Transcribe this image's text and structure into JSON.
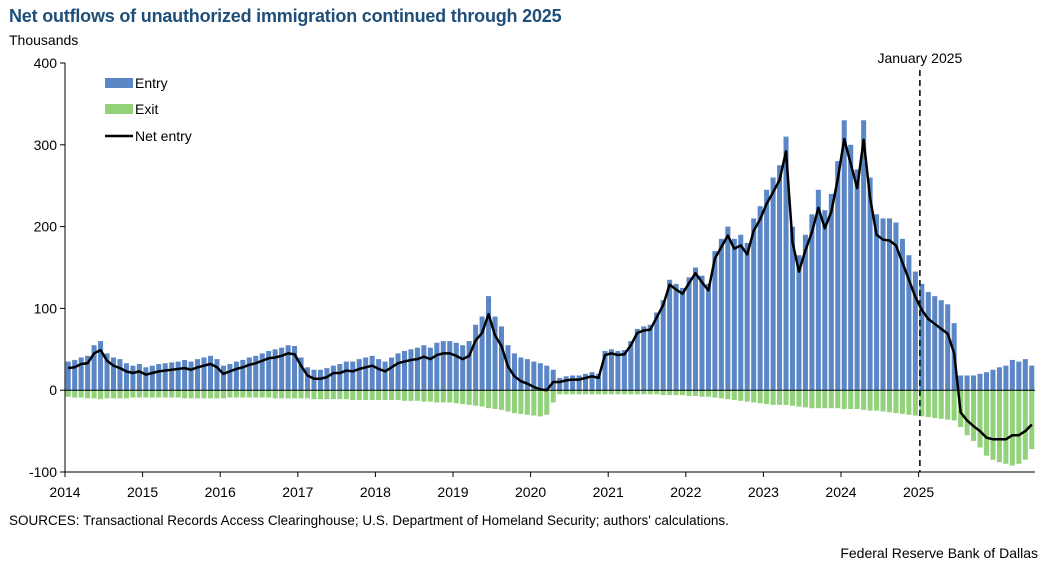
{
  "header": {
    "title": "Net outflows of unauthorized immigration continued through 2025",
    "units": "Thousands"
  },
  "footer": {
    "sources": "SOURCES: Transactional Records Access Clearinghouse; U.S. Department of Homeland Security; authors' calculations.",
    "credit": "Federal Reserve Bank of Dallas"
  },
  "chart_data": {
    "type": "bar",
    "frequency": "monthly",
    "start": "2014-01",
    "end": "2025-12",
    "ylim": [
      -100,
      400
    ],
    "yticks": [
      -100,
      0,
      100,
      200,
      300,
      400
    ],
    "xticks": [
      "2014",
      "2015",
      "2016",
      "2017",
      "2018",
      "2019",
      "2020",
      "2021",
      "2022",
      "2023",
      "2024",
      "2025"
    ],
    "grid": false,
    "legend": "top-left",
    "colors": {
      "entry": "#5b87c7",
      "exit": "#92d27a",
      "net": "#000000",
      "title": "#1f4e79"
    },
    "annotation": {
      "label": "January 2025",
      "x": "2025-01"
    },
    "series": [
      {
        "name": "Entry",
        "type": "bar",
        "values": [
          35,
          37,
          40,
          42,
          55,
          60,
          45,
          40,
          38,
          33,
          30,
          32,
          28,
          30,
          32,
          33,
          34,
          35,
          37,
          35,
          38,
          40,
          42,
          38,
          30,
          32,
          35,
          37,
          40,
          42,
          45,
          48,
          50,
          52,
          55,
          54,
          40,
          28,
          25,
          25,
          27,
          30,
          32,
          35,
          35,
          38,
          40,
          42,
          38,
          35,
          40,
          45,
          48,
          50,
          52,
          55,
          52,
          58,
          60,
          60,
          58,
          55,
          60,
          80,
          90,
          115,
          90,
          78,
          55,
          45,
          40,
          38,
          35,
          33,
          30,
          25,
          15,
          17,
          18,
          18,
          20,
          22,
          20,
          48,
          50,
          48,
          49,
          60,
          75,
          78,
          80,
          95,
          110,
          135,
          130,
          125,
          138,
          150,
          140,
          130,
          170,
          185,
          200,
          185,
          190,
          180,
          210,
          225,
          245,
          260,
          275,
          310,
          200,
          165,
          190,
          215,
          245,
          220,
          240,
          280,
          330,
          300,
          270,
          330,
          260,
          215,
          210,
          210,
          205,
          185,
          165,
          145,
          130,
          120,
          115,
          110,
          105,
          82,
          18,
          18,
          18,
          20,
          22,
          25,
          28,
          30,
          37,
          35,
          38,
          30
        ]
      },
      {
        "name": "Exit",
        "type": "bar",
        "values": [
          -8,
          -9,
          -9,
          -10,
          -10,
          -11,
          -10,
          -10,
          -10,
          -10,
          -9,
          -9,
          -9,
          -9,
          -9,
          -9,
          -9,
          -9,
          -10,
          -10,
          -10,
          -10,
          -10,
          -10,
          -10,
          -9,
          -9,
          -9,
          -9,
          -9,
          -9,
          -9,
          -10,
          -10,
          -10,
          -10,
          -10,
          -10,
          -11,
          -11,
          -11,
          -11,
          -11,
          -11,
          -12,
          -12,
          -12,
          -12,
          -12,
          -12,
          -12,
          -12,
          -13,
          -13,
          -13,
          -14,
          -14,
          -15,
          -15,
          -15,
          -16,
          -17,
          -18,
          -19,
          -20,
          -22,
          -23,
          -24,
          -26,
          -28,
          -29,
          -30,
          -31,
          -32,
          -30,
          -15,
          -5,
          -5,
          -5,
          -5,
          -5,
          -5,
          -5,
          -5,
          -5,
          -5,
          -5,
          -5,
          -5,
          -5,
          -5,
          -5,
          -6,
          -6,
          -6,
          -6,
          -7,
          -7,
          -8,
          -8,
          -9,
          -10,
          -11,
          -12,
          -13,
          -14,
          -15,
          -16,
          -17,
          -18,
          -18,
          -18,
          -19,
          -20,
          -21,
          -22,
          -22,
          -22,
          -22,
          -22,
          -23,
          -23,
          -23,
          -24,
          -25,
          -25,
          -26,
          -27,
          -28,
          -29,
          -30,
          -31,
          -32,
          -33,
          -34,
          -35,
          -36,
          -37,
          -45,
          -55,
          -62,
          -70,
          -80,
          -85,
          -88,
          -90,
          -92,
          -90,
          -85,
          -72
        ]
      },
      {
        "name": "Net entry",
        "type": "line",
        "values": [
          27,
          28,
          32,
          33,
          45,
          49,
          36,
          30,
          27,
          23,
          21,
          23,
          19,
          21,
          23,
          24,
          25,
          26,
          27,
          25,
          28,
          30,
          32,
          28,
          20,
          23,
          26,
          28,
          31,
          33,
          36,
          39,
          40,
          42,
          45,
          44,
          30,
          18,
          14,
          14,
          16,
          21,
          21,
          24,
          23,
          26,
          28,
          30,
          26,
          23,
          28,
          33,
          35,
          37,
          38,
          41,
          38,
          43,
          45,
          45,
          42,
          38,
          42,
          61,
          70,
          93,
          67,
          54,
          29,
          17,
          11,
          8,
          4,
          1,
          0,
          10,
          10,
          12,
          13,
          13,
          15,
          17,
          15,
          43,
          45,
          43,
          44,
          55,
          70,
          73,
          74,
          89,
          104,
          129,
          123,
          118,
          131,
          143,
          132,
          122,
          161,
          175,
          189,
          173,
          177,
          166,
          195,
          209,
          228,
          242,
          257,
          292,
          181,
          145,
          171,
          193,
          223,
          198,
          218,
          258,
          307,
          277,
          247,
          306,
          235,
          190,
          184,
          183,
          177,
          156,
          135,
          114,
          98,
          87,
          81,
          75,
          69,
          45,
          -27,
          -37,
          -44,
          -50,
          -58,
          -60,
          -60,
          -60,
          -55,
          -55,
          -50,
          -42
        ]
      }
    ]
  }
}
